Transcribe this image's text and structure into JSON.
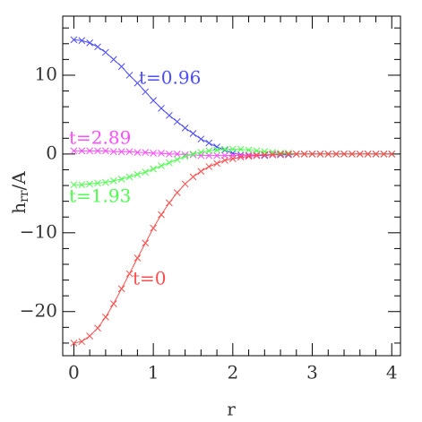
{
  "chart_data": {
    "type": "line",
    "xlabel": "r",
    "ylabel": "h",
    "ylabel_sub": "rr",
    "ylabel_tail": "/A",
    "x": [
      0,
      0.1,
      0.2,
      0.3,
      0.4,
      0.5,
      0.6,
      0.7,
      0.8,
      0.9,
      1.0,
      1.1,
      1.2,
      1.3,
      1.4,
      1.5,
      1.6,
      1.7,
      1.8,
      1.9,
      2.0,
      2.1,
      2.2,
      2.3,
      2.4,
      2.5,
      2.6,
      2.7,
      2.8,
      2.9,
      3.0,
      3.1,
      3.2,
      3.3,
      3.4,
      3.5,
      3.6,
      3.7,
      3.8,
      3.9,
      4.0
    ],
    "series": [
      {
        "name": "t=0.96",
        "color": "#4d4dff",
        "values": [
          14.5,
          14.4,
          14.1,
          13.6,
          12.9,
          12.0,
          11.1,
          10.0,
          9.0,
          7.9,
          6.8,
          5.8,
          4.9,
          4.1,
          3.3,
          2.6,
          1.9,
          1.4,
          0.9,
          0.5,
          0.1,
          -0.1,
          -0.2,
          -0.2,
          -0.2,
          -0.1,
          -0.1,
          -0.1,
          0,
          0,
          0,
          0,
          0,
          0,
          0,
          0,
          0,
          0,
          0,
          0,
          0
        ]
      },
      {
        "name": "t=2.89",
        "color": "#ff4dff",
        "values": [
          0.4,
          0.4,
          0.4,
          0.4,
          0.4,
          0.3,
          0.3,
          0.3,
          0.2,
          0.2,
          0.1,
          0.1,
          0,
          0,
          -0.1,
          -0.1,
          -0.2,
          -0.2,
          -0.2,
          -0.2,
          -0.2,
          -0.2,
          -0.1,
          -0.1,
          -0.1,
          0,
          0,
          0,
          0,
          0,
          0,
          0,
          0,
          0,
          0,
          0,
          0,
          0,
          0,
          0,
          0
        ]
      },
      {
        "name": "t=1.93",
        "color": "#4dff4d",
        "values": [
          -3.9,
          -3.9,
          -3.8,
          -3.7,
          -3.6,
          -3.4,
          -3.2,
          -2.9,
          -2.6,
          -2.3,
          -1.9,
          -1.5,
          -1.1,
          -0.7,
          -0.3,
          0,
          0.2,
          0.4,
          0.5,
          0.6,
          0.6,
          0.6,
          0.5,
          0.4,
          0.3,
          0.2,
          0.1,
          0.1,
          0,
          0,
          0,
          0,
          0,
          0,
          0,
          0,
          0,
          0,
          0,
          0,
          0
        ]
      },
      {
        "name": "t=0",
        "color": "#ff4d4d",
        "values": [
          -24.0,
          -23.8,
          -23.1,
          -22.1,
          -20.7,
          -19.0,
          -17.1,
          -15.2,
          -13.2,
          -11.3,
          -9.4,
          -7.7,
          -6.2,
          -4.9,
          -3.8,
          -2.9,
          -2.2,
          -1.6,
          -1.2,
          -0.8,
          -0.6,
          -0.4,
          -0.3,
          -0.2,
          -0.1,
          -0.1,
          0,
          0,
          0,
          0,
          0,
          0,
          0,
          0,
          0,
          0,
          0,
          0,
          0,
          0,
          0
        ]
      }
    ],
    "xlim": [
      -0.14,
      4.11
    ],
    "ylim": [
      -25.6,
      17.5
    ],
    "xticks": [
      0,
      1,
      2,
      3,
      4
    ],
    "yticks": [
      {
        "value": -20,
        "label": "−20"
      },
      {
        "value": -10,
        "label": "−10"
      },
      0,
      10
    ],
    "xminorticks": [
      0.2,
      0.4,
      0.6,
      0.8,
      1.2,
      1.4,
      1.6,
      1.8,
      2.2,
      2.4,
      2.6,
      2.8,
      3.2,
      3.4,
      3.6,
      3.8
    ],
    "yminorticks": [
      -24,
      -22,
      -18,
      -16,
      -14,
      -12,
      -8,
      -6,
      -4,
      -2,
      2,
      4,
      6,
      8,
      12,
      14,
      16
    ],
    "markers": true
  }
}
